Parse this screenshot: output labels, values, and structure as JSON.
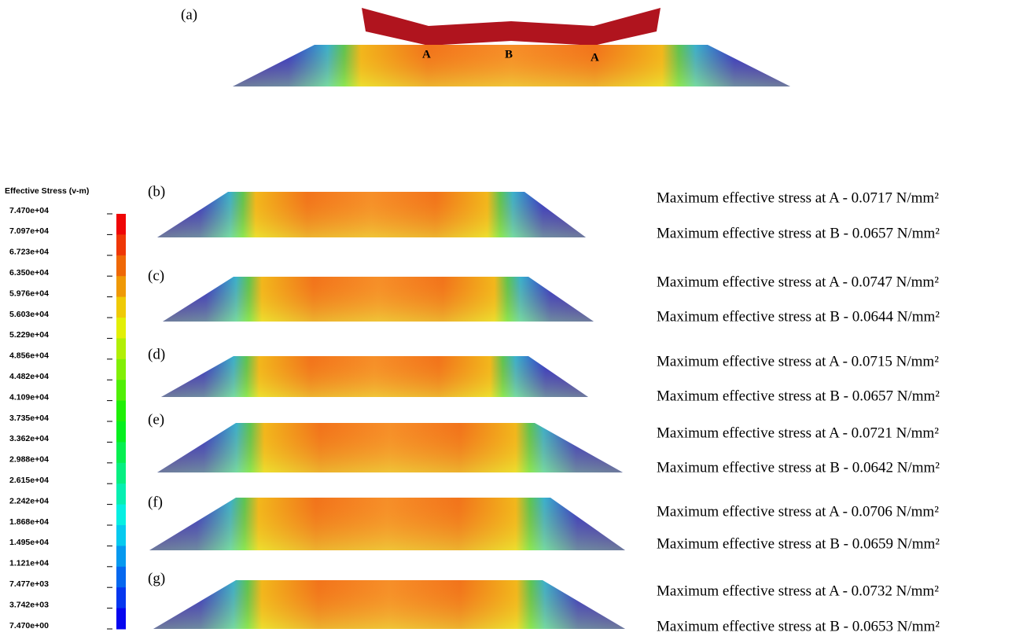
{
  "panel_a": {
    "label": "(a)",
    "markers": [
      "A",
      "B",
      "A"
    ]
  },
  "legend": {
    "title": "Effective Stress (v-m)",
    "labels": [
      "7.470e+04",
      "7.097e+04",
      "6.723e+04",
      "6.350e+04",
      "5.976e+04",
      "5.603e+04",
      "5.229e+04",
      "4.856e+04",
      "4.482e+04",
      "4.109e+04",
      "3.735e+04",
      "3.362e+04",
      "2.988e+04",
      "2.615e+04",
      "2.242e+04",
      "1.868e+04",
      "1.495e+04",
      "1.121e+04",
      "7.477e+03",
      "3.742e+03",
      "7.470e+00"
    ]
  },
  "panels": [
    {
      "label": "(b)",
      "lines": [
        "Maximum effective stress at A - 0.0717 N/mm²",
        "Maximum effective stress at B - 0.0657 N/mm²"
      ]
    },
    {
      "label": "(c)",
      "lines": [
        "Maximum effective stress at A - 0.0747 N/mm²",
        "Maximum effective stress at B - 0.0644 N/mm²"
      ]
    },
    {
      "label": "(d)",
      "lines": [
        "Maximum effective stress at A - 0.0715 N/mm²",
        "Maximum effective stress at B - 0.0657 N/mm²"
      ]
    },
    {
      "label": "(e)",
      "lines": [
        "Maximum effective stress at A - 0.0721 N/mm²",
        "Maximum effective stress at B - 0.0642 N/mm²"
      ]
    },
    {
      "label": "(f)",
      "lines": [
        "Maximum effective stress at A - 0.0706 N/mm²",
        "Maximum effective stress at B - 0.0659 N/mm²"
      ]
    },
    {
      "label": "(g)",
      "lines": [
        "Maximum effective stress at A - 0.0732 N/mm²",
        "Maximum effective stress at B - 0.0653 N/mm²"
      ]
    }
  ]
}
